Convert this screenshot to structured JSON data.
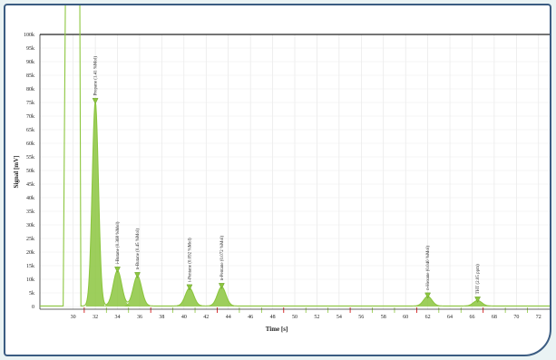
{
  "chart_data": {
    "type": "line",
    "xlabel": "Time [s]",
    "ylabel": "Signal [mV]",
    "xlim": [
      27,
      73
    ],
    "ylim": [
      -1,
      100
    ],
    "x_ticks": [
      "30",
      "32",
      "34",
      "36",
      "38",
      "40",
      "42",
      "44",
      "46",
      "48",
      "50",
      "52",
      "54",
      "56",
      "58",
      "60",
      "62",
      "64",
      "66",
      "68",
      "70",
      "72"
    ],
    "y_ticks": [
      "0",
      "5",
      "10",
      "15",
      "20",
      "25",
      "30",
      "35",
      "40",
      "45",
      "50",
      "55",
      "60",
      "65",
      "70",
      "75",
      "80",
      "85",
      "90",
      "95",
      "100"
    ],
    "series": [
      {
        "color": "#8cc63f",
        "peaks": [
          {
            "label": "Propane (1.41 %Mol)",
            "time": 32.0,
            "signal": 75
          },
          {
            "label": "i-Butane (0.368 %Mol)",
            "time": 34.0,
            "signal": 13
          },
          {
            "label": "n-Butane (0.45 %Mol)",
            "time": 35.8,
            "signal": 11
          },
          {
            "label": "i-Pentane (0.092 %Mol)",
            "time": 40.5,
            "signal": 6.5
          },
          {
            "label": "n-Pentane (0.072 %Mol)",
            "time": 43.4,
            "signal": 7
          },
          {
            "label": "n-Hexane (0.040 %Mol)",
            "time": 62.0,
            "signal": 3.5
          },
          {
            "label": "THT (2.05 ppm)",
            "time": 66.5,
            "signal": 2
          }
        ],
        "solvent_front": {
          "start": 29.3,
          "end": 30.6
        }
      }
    ]
  }
}
